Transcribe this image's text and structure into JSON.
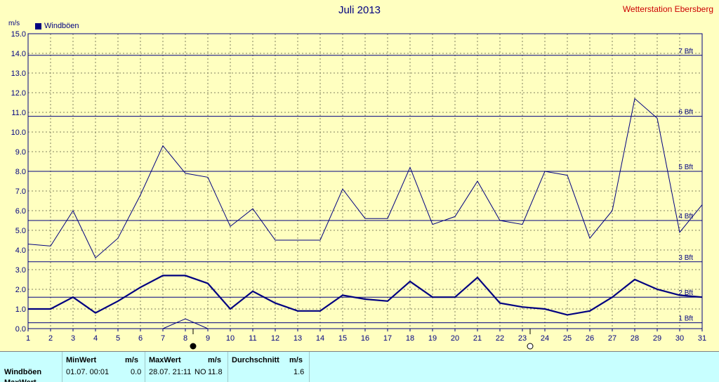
{
  "header": {
    "title": "Juli 2013",
    "station": "Wetterstation Ebersberg",
    "unit": "m/s",
    "legend_label": "Windböen"
  },
  "chart_data": {
    "type": "line",
    "title": "Juli 2013",
    "ylabel": "m/s",
    "ylim": [
      0,
      15
    ],
    "yticks": [
      "0.0",
      "1.0",
      "2.0",
      "3.0",
      "4.0",
      "5.0",
      "6.0",
      "7.0",
      "8.0",
      "9.0",
      "10.0",
      "11.0",
      "12.0",
      "13.0",
      "14.0",
      "15.0"
    ],
    "x": [
      1,
      2,
      3,
      4,
      5,
      6,
      7,
      8,
      9,
      10,
      11,
      12,
      13,
      14,
      15,
      16,
      17,
      18,
      19,
      20,
      21,
      22,
      23,
      24,
      25,
      26,
      27,
      28,
      29,
      30,
      31
    ],
    "grid": true,
    "series": [
      {
        "name": "Windböen",
        "color": "#000080",
        "values": [
          4.3,
          4.2,
          6.0,
          3.6,
          4.6,
          6.8,
          9.3,
          7.9,
          7.7,
          5.2,
          6.1,
          4.5,
          4.5,
          4.5,
          7.1,
          5.6,
          5.6,
          8.2,
          5.3,
          5.7,
          7.5,
          5.5,
          5.3,
          8.0,
          7.8,
          4.6,
          6.0,
          11.7,
          10.7,
          4.9,
          6.3
        ]
      },
      {
        "name": "Durchschnitt",
        "color": "#000080",
        "values": [
          1.0,
          1.0,
          1.6,
          0.8,
          1.4,
          2.1,
          2.7,
          2.7,
          2.3,
          1.0,
          1.9,
          1.3,
          0.9,
          0.9,
          1.7,
          1.5,
          1.4,
          2.4,
          1.6,
          1.6,
          2.6,
          1.3,
          1.1,
          1.0,
          0.7,
          0.9,
          1.6,
          2.5,
          2.0,
          1.7,
          1.6
        ]
      },
      {
        "name": "Minimum",
        "color": "#000080",
        "values": [
          null,
          null,
          null,
          null,
          null,
          null,
          0.0,
          0.5,
          0.0,
          null,
          null,
          null,
          null,
          null,
          null,
          null,
          null,
          null,
          null,
          null,
          null,
          null,
          null,
          null,
          null,
          null,
          null,
          null,
          null,
          null,
          null
        ]
      }
    ],
    "beaufort": [
      {
        "label": "1 Bft",
        "value": 0.3
      },
      {
        "label": "2 Bft",
        "value": 1.6
      },
      {
        "label": "3 Bft",
        "value": 3.4
      },
      {
        "label": "4 Bft",
        "value": 5.5
      },
      {
        "label": "5 Bft",
        "value": 8.0
      },
      {
        "label": "6 Bft",
        "value": 10.8
      },
      {
        "label": "7 Bft",
        "value": 13.9
      }
    ],
    "moon_markers": [
      {
        "day": 8,
        "phase": "new"
      },
      {
        "day": 23,
        "phase": "full"
      }
    ]
  },
  "stats": {
    "row_label": "Windböen",
    "row_label_2": "MaxWert",
    "min_header": "MinWert",
    "min_unit": "m/s",
    "min_date": "01.07.  00:01",
    "min_value": "0.0",
    "max_header": "MaxWert",
    "max_unit": "m/s",
    "max_date": "28.07.  21:11",
    "max_dir": "NO",
    "max_value": "11.8",
    "avg_header": "Durchschnitt",
    "avg_unit": "m/s",
    "avg_value": "1.6"
  }
}
